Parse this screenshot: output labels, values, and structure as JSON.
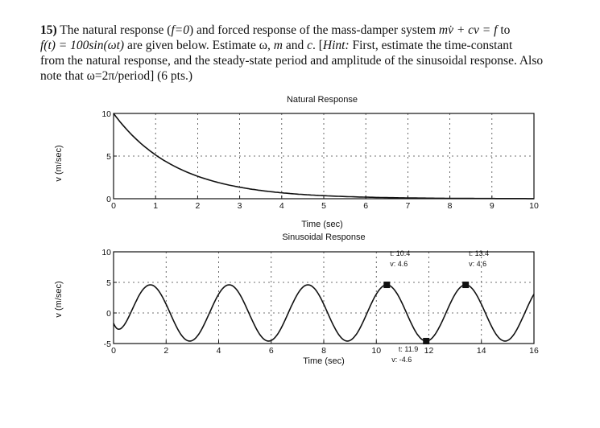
{
  "problem": {
    "number": "15)",
    "line1_a": "The natural response (",
    "line1_f0": "f=0",
    "line1_b": ") and forced response of the mass-damper system ",
    "line1_eq": "mv̇ + cv = f",
    "line1_c": " to",
    "line2_eq": "f(t) = 100sin(ωt)",
    "line2_a": " are given below. Estimate ω, ",
    "line2_m": "m",
    "line2_b": " and ",
    "line2_cc": "c",
    "line2_c": ". [",
    "line2_hint": "Hint:",
    "line2_d": " First, estimate the time-constant",
    "line3": "from the natural response, and the steady-state period and amplitude of the sinusoidal response. Also",
    "line4": "note that ω=2π/period] (6 pts.)"
  },
  "chart_data": [
    {
      "type": "line",
      "title": "Natural Response",
      "xlabel": "Time (sec)",
      "ylabel": "v (m/sec)",
      "xlim": [
        0,
        10
      ],
      "ylim": [
        0,
        10
      ],
      "xticks": [
        0,
        1,
        2,
        3,
        4,
        5,
        6,
        7,
        8,
        9,
        10
      ],
      "yticks": [
        0,
        5,
        10
      ],
      "grid": "dotted",
      "series": [
        {
          "name": "v(t)",
          "v0": 10,
          "time_constant": 1.5
        }
      ]
    },
    {
      "type": "line",
      "title": "Sinusoidal Response",
      "xlabel": "Time (sec)",
      "ylabel": "v (m/sec)",
      "xlim": [
        0,
        16
      ],
      "ylim": [
        -5,
        10
      ],
      "xticks": [
        0,
        2,
        4,
        6,
        8,
        10,
        12,
        14,
        16
      ],
      "yticks": [
        -5,
        0,
        5,
        10
      ],
      "grid": "dotted",
      "series": [
        {
          "name": "v(t)",
          "amplitude": 4.6,
          "period": 3.0
        }
      ],
      "data_tips": [
        {
          "t": 10.4,
          "v": 4.6,
          "t_label": "t: 10.4",
          "v_label": "v: 4.6"
        },
        {
          "t": 11.9,
          "v": -4.6,
          "t_label": "t: 11.9",
          "v_label": "v: -4.6"
        },
        {
          "t": 13.4,
          "v": 4.6,
          "t_label": "t: 13.4",
          "v_label": "v: 4.6"
        }
      ]
    }
  ]
}
